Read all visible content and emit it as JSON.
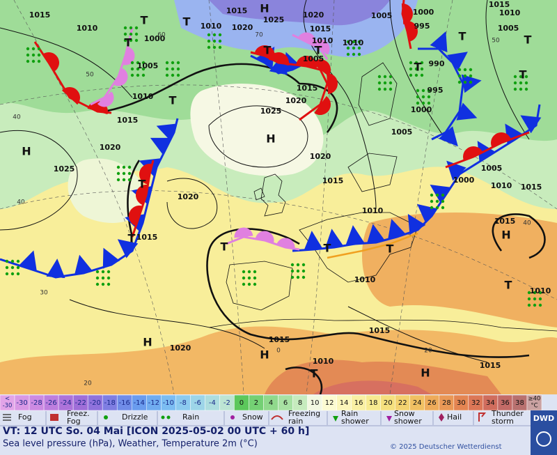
{
  "map": {
    "pressure_labels": [
      "1015",
      "1010",
      "1000",
      "1005",
      "1010",
      "1015",
      "1020",
      "1025",
      "1020",
      "1015",
      "1015",
      "1010",
      "1020",
      "1025",
      "1020",
      "1015",
      "1010",
      "1010",
      "1005",
      "1015",
      "1020",
      "1025",
      "1020",
      "1015",
      "1010",
      "1005",
      "1000",
      "995",
      "990",
      "995",
      "1000",
      "1005",
      "1005",
      "1000",
      "1010",
      "1015",
      "1015",
      "1010",
      "1015",
      "1010",
      "1005",
      "1010",
      "1015",
      "1015",
      "1020",
      "1010",
      "1015"
    ],
    "centers": [
      "H",
      "T",
      "T",
      "T",
      "H",
      "H",
      "T",
      "T",
      "T",
      "T",
      "T",
      "H",
      "T",
      "H",
      "H",
      "T",
      "H",
      "T",
      "T",
      "T",
      "T",
      "T",
      "T",
      "T"
    ],
    "grid_labels": [
      "60",
      "50",
      "40",
      "40",
      "30",
      "20",
      "20",
      "40",
      "50",
      "70",
      "0"
    ]
  },
  "scale": [
    {
      "lines": [
        "<",
        "-30"
      ],
      "color": "#e2a4e8"
    },
    {
      "lines": [
        "-30"
      ],
      "color": "#d898e5"
    },
    {
      "lines": [
        "-28"
      ],
      "color": "#cc8ae2"
    },
    {
      "lines": [
        "-26"
      ],
      "color": "#bd7ede"
    },
    {
      "lines": [
        "-24"
      ],
      "color": "#ad73da"
    },
    {
      "lines": [
        "-22"
      ],
      "color": "#9f6ed8"
    },
    {
      "lines": [
        "-20"
      ],
      "color": "#8f72dc"
    },
    {
      "lines": [
        "-18"
      ],
      "color": "#7f7ee2"
    },
    {
      "lines": [
        "-16"
      ],
      "color": "#708ce8"
    },
    {
      "lines": [
        "-14"
      ],
      "color": "#6a9cee"
    },
    {
      "lines": [
        "-12"
      ],
      "color": "#70acf0"
    },
    {
      "lines": [
        "-10"
      ],
      "color": "#7cbdf2"
    },
    {
      "lines": [
        "-8"
      ],
      "color": "#8ccaef"
    },
    {
      "lines": [
        "-6"
      ],
      "color": "#9dd5e8"
    },
    {
      "lines": [
        "-4"
      ],
      "color": "#addddf"
    },
    {
      "lines": [
        "-2"
      ],
      "color": "#bde4d3"
    },
    {
      "lines": [
        "0"
      ],
      "color": "#5cc85c"
    },
    {
      "lines": [
        "2"
      ],
      "color": "#74d074"
    },
    {
      "lines": [
        "4"
      ],
      "color": "#90d98c"
    },
    {
      "lines": [
        "6"
      ],
      "color": "#a8e1a3"
    },
    {
      "lines": [
        "8"
      ],
      "color": "#c6ebbe"
    },
    {
      "lines": [
        "10"
      ],
      "color": "#f2f8e2"
    },
    {
      "lines": [
        "12"
      ],
      "color": "#fcfbd2"
    },
    {
      "lines": [
        "14"
      ],
      "color": "#fbf6ba"
    },
    {
      "lines": [
        "16"
      ],
      "color": "#f9f0a4"
    },
    {
      "lines": [
        "18"
      ],
      "color": "#f7ea90"
    },
    {
      "lines": [
        "20"
      ],
      "color": "#f5e07e"
    },
    {
      "lines": [
        "22"
      ],
      "color": "#f3d270"
    },
    {
      "lines": [
        "24"
      ],
      "color": "#f0c062"
    },
    {
      "lines": [
        "26"
      ],
      "color": "#eeab5a"
    },
    {
      "lines": [
        "28"
      ],
      "color": "#ea9856"
    },
    {
      "lines": [
        "30"
      ],
      "color": "#e48552"
    },
    {
      "lines": [
        "32"
      ],
      "color": "#dc7757"
    },
    {
      "lines": [
        "34"
      ],
      "color": "#d06d5d"
    },
    {
      "lines": [
        "36"
      ],
      "color": "#c36b67"
    },
    {
      "lines": [
        "38"
      ],
      "color": "#b8716f"
    },
    {
      "lines": [
        "≥40",
        "°C"
      ],
      "color": "#caa2a2"
    }
  ],
  "weather_legend": [
    {
      "lines": [
        "Fog"
      ]
    },
    {
      "lines": [
        "Freez.",
        "Fog"
      ]
    },
    {
      "lines": [
        "Drizzle"
      ]
    },
    {
      "lines": [
        "Rain"
      ]
    },
    {
      "lines": [
        "Snow"
      ]
    },
    {
      "lines": [
        "Freezing",
        "rain"
      ]
    },
    {
      "lines": [
        "Rain",
        "shower"
      ]
    },
    {
      "lines": [
        "Snow",
        "shower"
      ]
    },
    {
      "lines": [
        "Hail"
      ]
    },
    {
      "lines": [
        "Thunder",
        "storm"
      ]
    }
  ],
  "footer": {
    "valid_time": "VT: 12 UTC So.  04 Mai [ICON 2025-05-02  00 UTC + 60 h]",
    "description": "Sea level pressure (hPa), Weather, Temperature 2m (°C)",
    "copyright": "© 2025 Deutscher Wetterdienst",
    "logo": "DWD"
  }
}
